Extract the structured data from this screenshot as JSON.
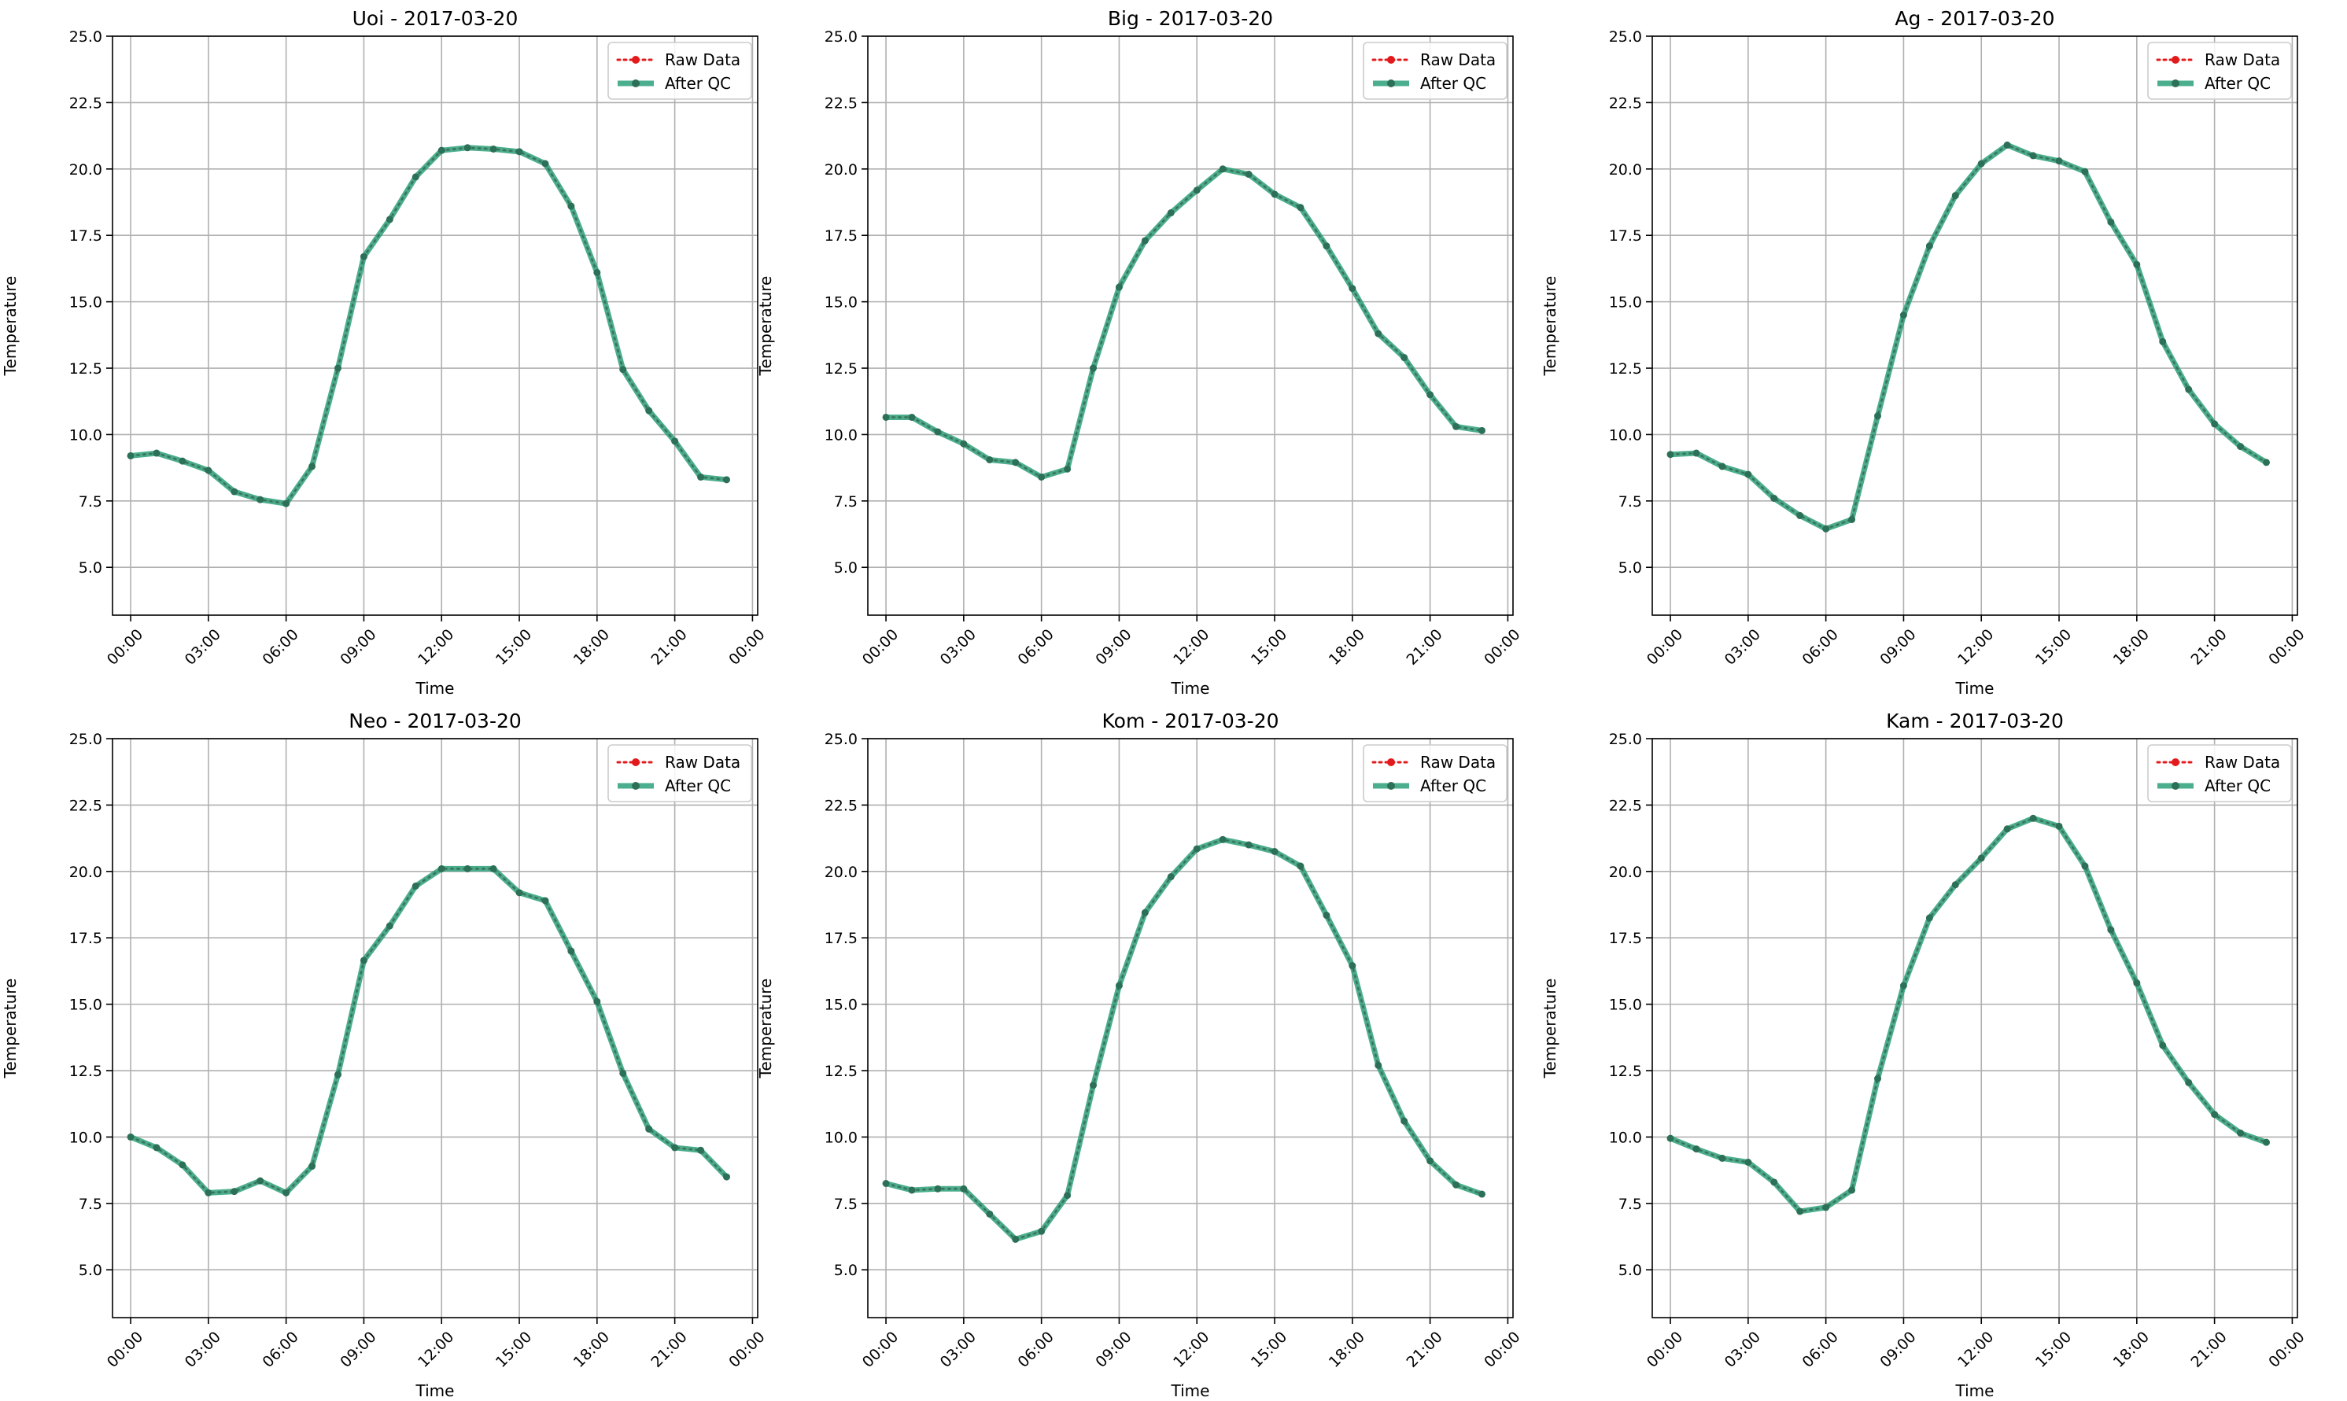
{
  "colors": {
    "raw": "#e31a1c",
    "after_qc": "#2ca07a",
    "after_qc_marker": "#2d7058",
    "grid": "#b0b0b0",
    "frame": "#000000",
    "background": "#ffffff"
  },
  "layout": {
    "rows": 2,
    "cols": 3
  },
  "chart_data": [
    {
      "type": "line",
      "title": "Uoi - 2017-03-20",
      "xlabel": "Time",
      "ylabel": "Temperature",
      "ylim": [
        3.2,
        25
      ],
      "yticks": [
        5.0,
        7.5,
        10.0,
        12.5,
        15.0,
        17.5,
        20.0,
        22.5,
        25.0
      ],
      "ytick_labels": [
        "5.0",
        "7.5",
        "10.0",
        "12.5",
        "15.0",
        "17.5",
        "20.0",
        "22.5",
        "25.0"
      ],
      "xlim_hours": [
        -0.7,
        24.2
      ],
      "xticks_hours": [
        0,
        3,
        6,
        9,
        12,
        15,
        18,
        21,
        24
      ],
      "xtick_labels": [
        "00:00",
        "03:00",
        "06:00",
        "09:00",
        "12:00",
        "15:00",
        "18:00",
        "21:00",
        "00:00"
      ],
      "x": [
        "00:00",
        "01:00",
        "02:00",
        "03:00",
        "04:00",
        "05:00",
        "06:00",
        "07:00",
        "08:00",
        "09:00",
        "10:00",
        "11:00",
        "12:00",
        "13:00",
        "14:00",
        "15:00",
        "16:00",
        "17:00",
        "18:00",
        "19:00",
        "20:00",
        "21:00",
        "22:00",
        "23:00"
      ],
      "grid": true,
      "legend_position": "top-right",
      "series": [
        {
          "name": "Raw Data",
          "style": "dotted",
          "values": [
            9.2,
            9.3,
            9.0,
            8.65,
            7.85,
            7.55,
            7.4,
            8.8,
            12.5,
            16.7,
            18.1,
            19.7,
            20.7,
            20.8,
            20.75,
            20.65,
            20.2,
            18.6,
            16.1,
            12.45,
            10.9,
            9.75,
            8.4,
            8.3
          ]
        },
        {
          "name": "After QC",
          "style": "solid",
          "values": [
            9.2,
            9.3,
            9.0,
            8.65,
            7.85,
            7.55,
            7.4,
            8.8,
            12.5,
            16.7,
            18.1,
            19.7,
            20.7,
            20.8,
            20.75,
            20.65,
            20.2,
            18.6,
            16.1,
            12.45,
            10.9,
            9.75,
            8.4,
            8.3
          ]
        }
      ]
    },
    {
      "type": "line",
      "title": "Big - 2017-03-20",
      "xlabel": "Time",
      "ylabel": "Temperature",
      "ylim": [
        3.2,
        25
      ],
      "yticks": [
        5.0,
        7.5,
        10.0,
        12.5,
        15.0,
        17.5,
        20.0,
        22.5,
        25.0
      ],
      "ytick_labels": [
        "5.0",
        "7.5",
        "10.0",
        "12.5",
        "15.0",
        "17.5",
        "20.0",
        "22.5",
        "25.0"
      ],
      "xlim_hours": [
        -0.7,
        24.2
      ],
      "xticks_hours": [
        0,
        3,
        6,
        9,
        12,
        15,
        18,
        21,
        24
      ],
      "xtick_labels": [
        "00:00",
        "03:00",
        "06:00",
        "09:00",
        "12:00",
        "15:00",
        "18:00",
        "21:00",
        "00:00"
      ],
      "x": [
        "00:00",
        "01:00",
        "02:00",
        "03:00",
        "04:00",
        "05:00",
        "06:00",
        "07:00",
        "08:00",
        "09:00",
        "10:00",
        "11:00",
        "12:00",
        "13:00",
        "14:00",
        "15:00",
        "16:00",
        "17:00",
        "18:00",
        "19:00",
        "20:00",
        "21:00",
        "22:00",
        "23:00"
      ],
      "grid": true,
      "legend_position": "top-right",
      "series": [
        {
          "name": "Raw Data",
          "style": "dotted",
          "values": [
            10.65,
            10.65,
            10.1,
            9.65,
            9.05,
            8.95,
            8.4,
            8.7,
            12.5,
            15.55,
            17.3,
            18.35,
            19.2,
            20.0,
            19.8,
            19.05,
            18.55,
            17.1,
            15.5,
            13.8,
            12.9,
            11.5,
            10.3,
            10.15
          ]
        },
        {
          "name": "After QC",
          "style": "solid",
          "values": [
            10.65,
            10.65,
            10.1,
            9.65,
            9.05,
            8.95,
            8.4,
            8.7,
            12.5,
            15.55,
            17.3,
            18.35,
            19.2,
            20.0,
            19.8,
            19.05,
            18.55,
            17.1,
            15.5,
            13.8,
            12.9,
            11.5,
            10.3,
            10.15
          ]
        }
      ]
    },
    {
      "type": "line",
      "title": "Ag - 2017-03-20",
      "xlabel": "Time",
      "ylabel": "Temperature",
      "ylim": [
        3.2,
        25
      ],
      "yticks": [
        5.0,
        7.5,
        10.0,
        12.5,
        15.0,
        17.5,
        20.0,
        22.5,
        25.0
      ],
      "ytick_labels": [
        "5.0",
        "7.5",
        "10.0",
        "12.5",
        "15.0",
        "17.5",
        "20.0",
        "22.5",
        "25.0"
      ],
      "xlim_hours": [
        -0.7,
        24.2
      ],
      "xticks_hours": [
        0,
        3,
        6,
        9,
        12,
        15,
        18,
        21,
        24
      ],
      "xtick_labels": [
        "00:00",
        "03:00",
        "06:00",
        "09:00",
        "12:00",
        "15:00",
        "18:00",
        "21:00",
        "00:00"
      ],
      "x": [
        "00:00",
        "01:00",
        "02:00",
        "03:00",
        "04:00",
        "05:00",
        "06:00",
        "07:00",
        "08:00",
        "09:00",
        "10:00",
        "11:00",
        "12:00",
        "13:00",
        "14:00",
        "15:00",
        "16:00",
        "17:00",
        "18:00",
        "19:00",
        "20:00",
        "21:00",
        "22:00",
        "23:00"
      ],
      "grid": true,
      "legend_position": "top-right",
      "series": [
        {
          "name": "Raw Data",
          "style": "dotted",
          "values": [
            9.25,
            9.3,
            8.8,
            8.5,
            7.6,
            6.95,
            6.45,
            6.8,
            10.7,
            14.5,
            17.1,
            19.0,
            20.2,
            20.9,
            20.5,
            20.3,
            19.9,
            18.0,
            16.4,
            13.5,
            11.7,
            10.4,
            9.55,
            8.95
          ]
        },
        {
          "name": "After QC",
          "style": "solid",
          "values": [
            9.25,
            9.3,
            8.8,
            8.5,
            7.6,
            6.95,
            6.45,
            6.8,
            10.7,
            14.5,
            17.1,
            19.0,
            20.2,
            20.9,
            20.5,
            20.3,
            19.9,
            18.0,
            16.4,
            13.5,
            11.7,
            10.4,
            9.55,
            8.95
          ]
        }
      ]
    },
    {
      "type": "line",
      "title": "Neo - 2017-03-20",
      "xlabel": "Time",
      "ylabel": "Temperature",
      "ylim": [
        3.2,
        25
      ],
      "yticks": [
        5.0,
        7.5,
        10.0,
        12.5,
        15.0,
        17.5,
        20.0,
        22.5,
        25.0
      ],
      "ytick_labels": [
        "5.0",
        "7.5",
        "10.0",
        "12.5",
        "15.0",
        "17.5",
        "20.0",
        "22.5",
        "25.0"
      ],
      "xlim_hours": [
        -0.7,
        24.2
      ],
      "xticks_hours": [
        0,
        3,
        6,
        9,
        12,
        15,
        18,
        21,
        24
      ],
      "xtick_labels": [
        "00:00",
        "03:00",
        "06:00",
        "09:00",
        "12:00",
        "15:00",
        "18:00",
        "21:00",
        "00:00"
      ],
      "x": [
        "00:00",
        "01:00",
        "02:00",
        "03:00",
        "04:00",
        "05:00",
        "06:00",
        "07:00",
        "08:00",
        "09:00",
        "10:00",
        "11:00",
        "12:00",
        "13:00",
        "14:00",
        "15:00",
        "16:00",
        "17:00",
        "18:00",
        "19:00",
        "20:00",
        "21:00",
        "22:00",
        "23:00"
      ],
      "grid": true,
      "legend_position": "top-right",
      "series": [
        {
          "name": "Raw Data",
          "style": "dotted",
          "values": [
            10.0,
            9.6,
            8.95,
            7.9,
            7.95,
            8.35,
            7.9,
            8.9,
            12.35,
            16.65,
            17.95,
            19.45,
            20.1,
            20.1,
            20.1,
            19.2,
            18.9,
            17.0,
            15.1,
            12.4,
            10.3,
            9.6,
            9.5,
            8.5
          ]
        },
        {
          "name": "After QC",
          "style": "solid",
          "values": [
            10.0,
            9.6,
            8.95,
            7.9,
            7.95,
            8.35,
            7.9,
            8.9,
            12.35,
            16.65,
            17.95,
            19.45,
            20.1,
            20.1,
            20.1,
            19.2,
            18.9,
            17.0,
            15.1,
            12.4,
            10.3,
            9.6,
            9.5,
            8.5
          ]
        }
      ]
    },
    {
      "type": "line",
      "title": "Kom - 2017-03-20",
      "xlabel": "Time",
      "ylabel": "Temperature",
      "ylim": [
        3.2,
        25
      ],
      "yticks": [
        5.0,
        7.5,
        10.0,
        12.5,
        15.0,
        17.5,
        20.0,
        22.5,
        25.0
      ],
      "ytick_labels": [
        "5.0",
        "7.5",
        "10.0",
        "12.5",
        "15.0",
        "17.5",
        "20.0",
        "22.5",
        "25.0"
      ],
      "xlim_hours": [
        -0.7,
        24.2
      ],
      "xticks_hours": [
        0,
        3,
        6,
        9,
        12,
        15,
        18,
        21,
        24
      ],
      "xtick_labels": [
        "00:00",
        "03:00",
        "06:00",
        "09:00",
        "12:00",
        "15:00",
        "18:00",
        "21:00",
        "00:00"
      ],
      "x": [
        "00:00",
        "01:00",
        "02:00",
        "03:00",
        "04:00",
        "05:00",
        "06:00",
        "07:00",
        "08:00",
        "09:00",
        "10:00",
        "11:00",
        "12:00",
        "13:00",
        "14:00",
        "15:00",
        "16:00",
        "17:00",
        "18:00",
        "19:00",
        "20:00",
        "21:00",
        "22:00",
        "23:00"
      ],
      "grid": true,
      "legend_position": "top-right",
      "series": [
        {
          "name": "Raw Data",
          "style": "dotted",
          "values": [
            8.25,
            8.0,
            8.05,
            8.05,
            7.1,
            6.15,
            6.45,
            7.8,
            11.95,
            15.7,
            18.45,
            19.8,
            20.85,
            21.2,
            21.0,
            20.75,
            20.2,
            18.35,
            16.45,
            12.7,
            10.6,
            9.1,
            8.2,
            7.85
          ]
        },
        {
          "name": "After QC",
          "style": "solid",
          "values": [
            8.25,
            8.0,
            8.05,
            8.05,
            7.1,
            6.15,
            6.45,
            7.8,
            11.95,
            15.7,
            18.45,
            19.8,
            20.85,
            21.2,
            21.0,
            20.75,
            20.2,
            18.35,
            16.45,
            12.7,
            10.6,
            9.1,
            8.2,
            7.85
          ]
        }
      ]
    },
    {
      "type": "line",
      "title": "Kam - 2017-03-20",
      "xlabel": "Time",
      "ylabel": "Temperature",
      "ylim": [
        3.2,
        25
      ],
      "yticks": [
        5.0,
        7.5,
        10.0,
        12.5,
        15.0,
        17.5,
        20.0,
        22.5,
        25.0
      ],
      "ytick_labels": [
        "5.0",
        "7.5",
        "10.0",
        "12.5",
        "15.0",
        "17.5",
        "20.0",
        "22.5",
        "25.0"
      ],
      "xlim_hours": [
        -0.7,
        24.2
      ],
      "xticks_hours": [
        0,
        3,
        6,
        9,
        12,
        15,
        18,
        21,
        24
      ],
      "xtick_labels": [
        "00:00",
        "03:00",
        "06:00",
        "09:00",
        "12:00",
        "15:00",
        "18:00",
        "21:00",
        "00:00"
      ],
      "x": [
        "00:00",
        "01:00",
        "02:00",
        "03:00",
        "04:00",
        "05:00",
        "06:00",
        "07:00",
        "08:00",
        "09:00",
        "10:00",
        "11:00",
        "12:00",
        "13:00",
        "14:00",
        "15:00",
        "16:00",
        "17:00",
        "18:00",
        "19:00",
        "20:00",
        "21:00",
        "22:00",
        "23:00"
      ],
      "grid": true,
      "legend_position": "top-right",
      "series": [
        {
          "name": "Raw Data",
          "style": "dotted",
          "values": [
            9.95,
            9.55,
            9.2,
            9.05,
            8.3,
            7.2,
            7.35,
            8.0,
            12.2,
            15.7,
            18.25,
            19.5,
            20.5,
            21.6,
            22.0,
            21.7,
            20.2,
            17.8,
            15.8,
            13.45,
            12.05,
            10.85,
            10.15,
            9.8
          ]
        },
        {
          "name": "After QC",
          "style": "solid",
          "values": [
            9.95,
            9.55,
            9.2,
            9.05,
            8.3,
            7.2,
            7.35,
            8.0,
            12.2,
            15.7,
            18.25,
            19.5,
            20.5,
            21.6,
            22.0,
            21.7,
            20.2,
            17.8,
            15.8,
            13.45,
            12.05,
            10.85,
            10.15,
            9.8
          ]
        }
      ]
    }
  ]
}
